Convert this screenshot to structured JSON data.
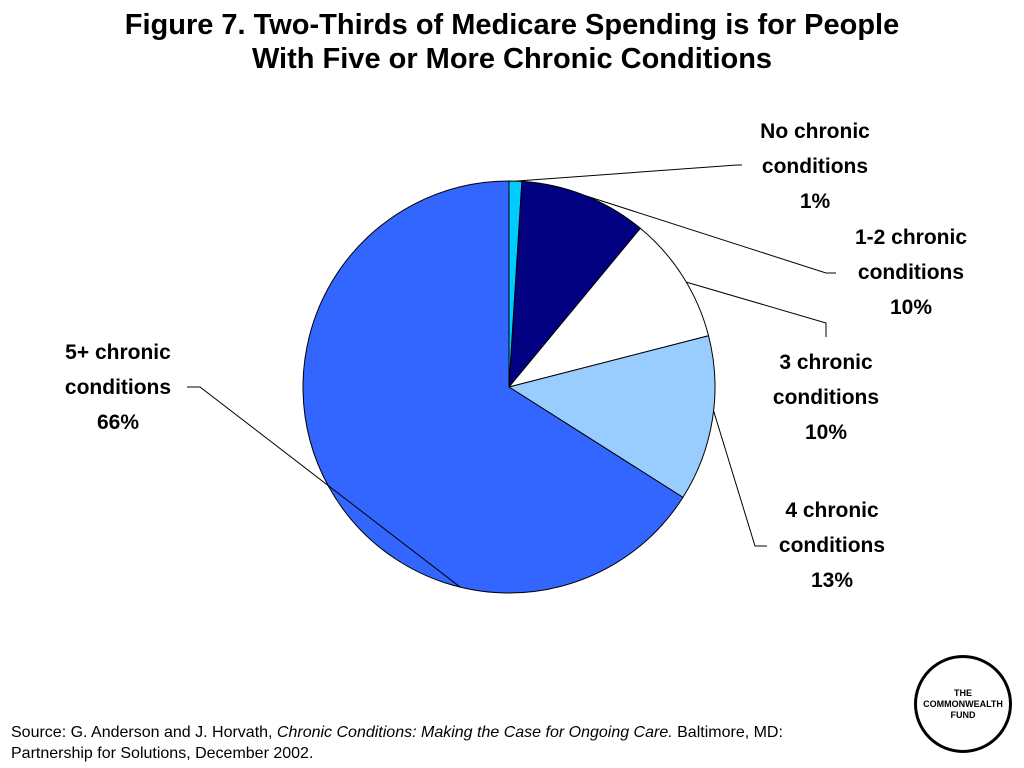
{
  "title": {
    "line1": "Figure 7. Two-Thirds of Medicare Spending is for People",
    "line2": "With Five or More Chronic Conditions"
  },
  "chart_data": {
    "type": "pie",
    "title": "Figure 7. Two-Thirds of Medicare Spending is for People With Five or More Chronic Conditions",
    "slices": [
      {
        "label": "No chronic conditions",
        "line1": "No chronic",
        "line2": "conditions",
        "value": 1,
        "pct": "1%",
        "color": "#00ccff"
      },
      {
        "label": "1-2 chronic conditions",
        "line1": "1-2 chronic",
        "line2": "conditions",
        "value": 10,
        "pct": "10%",
        "color": "#000080"
      },
      {
        "label": "3 chronic conditions",
        "line1": "3 chronic",
        "line2": "conditions",
        "value": 10,
        "pct": "10%",
        "color": "#ffffff"
      },
      {
        "label": "4 chronic conditions",
        "line1": "4 chronic",
        "line2": "conditions",
        "value": 13,
        "pct": "13%",
        "color": "#99ccff"
      },
      {
        "label": "5+ chronic conditions",
        "line1": "5+ chronic",
        "line2": "conditions",
        "value": 66,
        "pct": "66%",
        "color": "#3366ff"
      }
    ]
  },
  "source": {
    "prefix": "Source: G. Anderson and J. Horvath, ",
    "italic": "Chronic Conditions: Making the Case for Ongoing Care.",
    "suffix": " Baltimore, MD:",
    "line2": "Partnership for Solutions, December 2002."
  },
  "logo": {
    "line1": "THE",
    "line2": "COMMONWEALTH",
    "line3": "FUND"
  }
}
